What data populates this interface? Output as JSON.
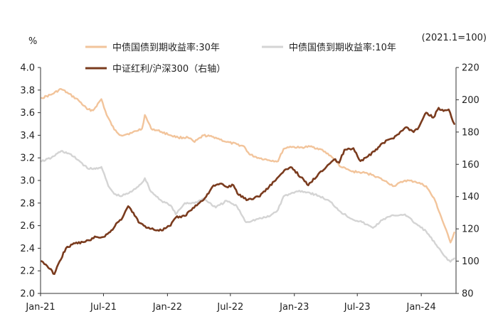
{
  "chart_data": {
    "type": "line",
    "left_unit": "%",
    "base_note": "(2021.1=100)",
    "x_ticks": [
      "Jan-21",
      "Jul-21",
      "Jan-22",
      "Jul-22",
      "Jan-23",
      "Jul-23",
      "Jan-24"
    ],
    "x_tick_dates": [
      "2021-01-01",
      "2021-07-01",
      "2022-01-01",
      "2022-07-01",
      "2023-01-01",
      "2023-07-01",
      "2024-01-01"
    ],
    "x_range": [
      "2021-01-01",
      "2024-04-10"
    ],
    "left_axis": {
      "min": 2.0,
      "max": 4.0,
      "ticks": [
        "2.0",
        "2.2",
        "2.4",
        "2.6",
        "2.8",
        "3.0",
        "3.2",
        "3.4",
        "3.6",
        "3.8",
        "4.0"
      ]
    },
    "right_axis": {
      "min": 80,
      "max": 220,
      "ticks": [
        "80",
        "100",
        "120",
        "140",
        "160",
        "180",
        "200",
        "220"
      ]
    },
    "grid": false,
    "legend_position": "top",
    "series": [
      {
        "name": "中债国债到期收益率:30年",
        "axis": "left",
        "color": "#F2C49B",
        "points": [
          [
            "2021-01-04",
            3.73
          ],
          [
            "2021-02-01",
            3.76
          ],
          [
            "2021-03-01",
            3.81
          ],
          [
            "2021-03-22",
            3.77
          ],
          [
            "2021-04-20",
            3.71
          ],
          [
            "2021-05-15",
            3.63
          ],
          [
            "2021-06-01",
            3.62
          ],
          [
            "2021-06-25",
            3.72
          ],
          [
            "2021-07-10",
            3.58
          ],
          [
            "2021-08-01",
            3.45
          ],
          [
            "2021-08-20",
            3.4
          ],
          [
            "2021-09-20",
            3.42
          ],
          [
            "2021-10-20",
            3.46
          ],
          [
            "2021-10-28",
            3.58
          ],
          [
            "2021-11-15",
            3.46
          ],
          [
            "2021-12-15",
            3.43
          ],
          [
            "2022-01-10",
            3.4
          ],
          [
            "2022-02-01",
            3.38
          ],
          [
            "2022-03-01",
            3.38
          ],
          [
            "2022-03-20",
            3.34
          ],
          [
            "2022-04-15",
            3.4
          ],
          [
            "2022-05-20",
            3.38
          ],
          [
            "2022-06-20",
            3.34
          ],
          [
            "2022-07-20",
            3.32
          ],
          [
            "2022-08-10",
            3.3
          ],
          [
            "2022-08-25",
            3.23
          ],
          [
            "2022-09-20",
            3.2
          ],
          [
            "2022-10-20",
            3.18
          ],
          [
            "2022-11-15",
            3.17
          ],
          [
            "2022-12-01",
            3.28
          ],
          [
            "2022-12-20",
            3.3
          ],
          [
            "2023-01-15",
            3.29
          ],
          [
            "2023-02-15",
            3.3
          ],
          [
            "2023-03-15",
            3.28
          ],
          [
            "2023-04-15",
            3.22
          ],
          [
            "2023-05-15",
            3.12
          ],
          [
            "2023-06-15",
            3.08
          ],
          [
            "2023-07-15",
            3.07
          ],
          [
            "2023-08-15",
            3.05
          ],
          [
            "2023-09-15",
            3.0
          ],
          [
            "2023-10-15",
            2.95
          ],
          [
            "2023-11-15",
            3.0
          ],
          [
            "2023-12-15",
            2.99
          ],
          [
            "2024-01-15",
            2.95
          ],
          [
            "2024-02-10",
            2.82
          ],
          [
            "2024-03-05",
            2.62
          ],
          [
            "2024-03-25",
            2.45
          ],
          [
            "2024-04-05",
            2.54
          ]
        ]
      },
      {
        "name": "中债国债到期收益率:10年",
        "axis": "left",
        "color": "#D4D4D4",
        "points": [
          [
            "2021-01-04",
            3.17
          ],
          [
            "2021-02-01",
            3.2
          ],
          [
            "2021-03-01",
            3.26
          ],
          [
            "2021-03-22",
            3.24
          ],
          [
            "2021-04-20",
            3.18
          ],
          [
            "2021-05-15",
            3.11
          ],
          [
            "2021-06-01",
            3.1
          ],
          [
            "2021-06-25",
            3.12
          ],
          [
            "2021-07-15",
            2.95
          ],
          [
            "2021-08-01",
            2.88
          ],
          [
            "2021-08-20",
            2.86
          ],
          [
            "2021-09-20",
            2.9
          ],
          [
            "2021-10-20",
            2.98
          ],
          [
            "2021-10-28",
            3.02
          ],
          [
            "2021-11-15",
            2.9
          ],
          [
            "2021-12-15",
            2.82
          ],
          [
            "2022-01-10",
            2.78
          ],
          [
            "2022-01-25",
            2.7
          ],
          [
            "2022-02-20",
            2.8
          ],
          [
            "2022-03-20",
            2.8
          ],
          [
            "2022-04-15",
            2.84
          ],
          [
            "2022-05-20",
            2.76
          ],
          [
            "2022-06-20",
            2.82
          ],
          [
            "2022-07-20",
            2.77
          ],
          [
            "2022-08-15",
            2.63
          ],
          [
            "2022-09-20",
            2.66
          ],
          [
            "2022-10-20",
            2.68
          ],
          [
            "2022-11-15",
            2.74
          ],
          [
            "2022-12-01",
            2.86
          ],
          [
            "2022-12-20",
            2.88
          ],
          [
            "2023-01-15",
            2.91
          ],
          [
            "2023-02-15",
            2.89
          ],
          [
            "2023-03-15",
            2.86
          ],
          [
            "2023-04-15",
            2.81
          ],
          [
            "2023-05-15",
            2.72
          ],
          [
            "2023-06-15",
            2.66
          ],
          [
            "2023-07-15",
            2.63
          ],
          [
            "2023-08-15",
            2.58
          ],
          [
            "2023-09-15",
            2.66
          ],
          [
            "2023-10-15",
            2.69
          ],
          [
            "2023-11-15",
            2.7
          ],
          [
            "2023-12-15",
            2.62
          ],
          [
            "2024-01-15",
            2.55
          ],
          [
            "2024-02-10",
            2.44
          ],
          [
            "2024-03-05",
            2.34
          ],
          [
            "2024-03-25",
            2.28
          ],
          [
            "2024-04-05",
            2.31
          ]
        ]
      },
      {
        "name": "中证红利/沪深300（右轴）",
        "axis": "right",
        "color": "#7A3B1E",
        "points": [
          [
            "2021-01-04",
            100
          ],
          [
            "2021-01-20",
            97
          ],
          [
            "2021-02-10",
            92
          ],
          [
            "2021-02-25",
            100
          ],
          [
            "2021-03-15",
            108
          ],
          [
            "2021-04-10",
            111
          ],
          [
            "2021-05-10",
            112
          ],
          [
            "2021-06-10",
            115
          ],
          [
            "2021-07-01",
            115
          ],
          [
            "2021-07-20",
            118
          ],
          [
            "2021-08-10",
            124
          ],
          [
            "2021-08-25",
            127
          ],
          [
            "2021-09-10",
            134
          ],
          [
            "2021-09-25",
            130
          ],
          [
            "2021-10-10",
            124
          ],
          [
            "2021-10-25",
            122
          ],
          [
            "2021-11-15",
            120
          ],
          [
            "2021-12-15",
            119
          ],
          [
            "2022-01-10",
            122
          ],
          [
            "2022-01-25",
            127
          ],
          [
            "2022-02-20",
            128
          ],
          [
            "2022-03-15",
            133
          ],
          [
            "2022-04-15",
            138
          ],
          [
            "2022-05-10",
            146
          ],
          [
            "2022-06-01",
            148
          ],
          [
            "2022-06-20",
            146
          ],
          [
            "2022-07-10",
            147
          ],
          [
            "2022-07-25",
            141
          ],
          [
            "2022-08-20",
            138
          ],
          [
            "2022-09-20",
            140
          ],
          [
            "2022-10-20",
            146
          ],
          [
            "2022-11-15",
            152
          ],
          [
            "2022-12-10",
            157
          ],
          [
            "2022-12-25",
            158
          ],
          [
            "2023-01-20",
            152
          ],
          [
            "2023-02-10",
            147
          ],
          [
            "2023-03-15",
            155
          ],
          [
            "2023-04-10",
            160
          ],
          [
            "2023-04-25",
            163
          ],
          [
            "2023-05-10",
            161
          ],
          [
            "2023-05-25",
            169
          ],
          [
            "2023-06-20",
            170
          ],
          [
            "2023-07-10",
            162
          ],
          [
            "2023-08-01",
            165
          ],
          [
            "2023-08-20",
            168
          ],
          [
            "2023-09-10",
            173
          ],
          [
            "2023-10-10",
            176
          ],
          [
            "2023-11-01",
            180
          ],
          [
            "2023-11-20",
            183
          ],
          [
            "2023-12-10",
            180
          ],
          [
            "2023-12-25",
            183
          ],
          [
            "2024-01-15",
            192
          ],
          [
            "2024-02-05",
            189
          ],
          [
            "2024-02-20",
            195
          ],
          [
            "2024-03-05",
            193
          ],
          [
            "2024-03-20",
            194
          ],
          [
            "2024-04-05",
            185
          ]
        ]
      }
    ]
  }
}
